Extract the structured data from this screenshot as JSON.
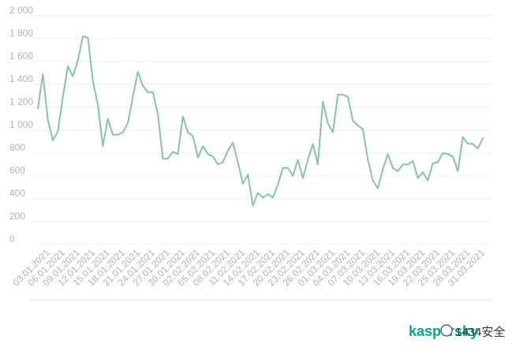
{
  "chart_data": {
    "type": "line",
    "title": "",
    "xlabel": "",
    "ylabel": "",
    "ylim": [
      0,
      2000
    ],
    "yticks": [
      "0",
      "200",
      "400",
      "600",
      "800",
      "1 000",
      "1 200",
      "1 400",
      "1 600",
      "1 800",
      "2 000"
    ],
    "ytick_values": [
      0,
      200,
      400,
      600,
      800,
      1000,
      1200,
      1400,
      1600,
      1800,
      2000
    ],
    "grid": true,
    "legend": "none",
    "x": [
      "01.01.2021",
      "02.01.2021",
      "03.01.2021",
      "04.01.2021",
      "05.01.2021",
      "06.01.2021",
      "07.01.2021",
      "08.01.2021",
      "09.01.2021",
      "10.01.2021",
      "11.01.2021",
      "12.01.2021",
      "13.01.2021",
      "14.01.2021",
      "15.01.2021",
      "16.01.2021",
      "17.01.2021",
      "18.01.2021",
      "19.01.2021",
      "20.01.2021",
      "21.01.2021",
      "22.01.2021",
      "23.01.2021",
      "24.01.2021",
      "25.01.2021",
      "26.01.2021",
      "27.01.2021",
      "28.01.2021",
      "29.01.2021",
      "30.01.2021",
      "31.01.2021",
      "01.02.2021",
      "02.02.2021",
      "03.02.2021",
      "04.02.2021",
      "05.02.2021",
      "06.02.2021",
      "07.02.2021",
      "08.02.2021",
      "09.02.2021",
      "10.02.2021",
      "11.02.2021",
      "12.02.2021",
      "13.02.2021",
      "14.02.2021",
      "15.02.2021",
      "16.02.2021",
      "17.02.2021",
      "18.02.2021",
      "19.02.2021",
      "20.02.2021",
      "21.02.2021",
      "22.02.2021",
      "23.02.2021",
      "24.02.2021",
      "25.02.2021",
      "26.02.2021",
      "27.02.2021",
      "28.02.2021",
      "01.03.2021",
      "02.03.2021",
      "03.03.2021",
      "04.03.2021",
      "05.03.2021",
      "06.03.2021",
      "07.03.2021",
      "08.03.2021",
      "09.03.2021",
      "10.03.2021",
      "11.03.2021",
      "12.03.2021",
      "13.03.2021",
      "14.03.2021",
      "15.03.2021",
      "16.03.2021",
      "17.03.2021",
      "18.03.2021",
      "19.03.2021",
      "20.03.2021",
      "21.03.2021",
      "22.03.2021",
      "23.03.2021",
      "24.03.2021",
      "25.03.2021",
      "26.03.2021",
      "27.03.2021",
      "28.03.2021",
      "29.03.2021",
      "30.03.2021",
      "31.03.2021"
    ],
    "xtick_labels": [
      "03.01.2021",
      "06.01.2021",
      "09.01.2021",
      "12.01.2021",
      "15.01.2021",
      "18.01.2021",
      "21.01.2021",
      "24.01.2021",
      "27.01.2021",
      "30.01.2021",
      "02.02.2021",
      "05.02.2021",
      "08.02.2021",
      "11.02.2021",
      "14.02.2021",
      "17.02.2021",
      "20.02.2021",
      "23.02.2021",
      "26.02.2021",
      "01.03.2021",
      "04.03.2021",
      "07.03.2021",
      "10.03.2021",
      "13.03.2021",
      "16.03.2021",
      "19.03.2021",
      "22.03.2021",
      "25.03.2021",
      "28.03.2021",
      "31.03.2021"
    ],
    "series": [
      {
        "color": "#87c5a0",
        "values": [
          1190,
          1490,
          1090,
          910,
          990,
          1290,
          1560,
          1470,
          1610,
          1820,
          1810,
          1430,
          1220,
          860,
          1100,
          960,
          960,
          980,
          1060,
          1290,
          1510,
          1390,
          1330,
          1330,
          1140,
          750,
          750,
          810,
          790,
          1120,
          980,
          950,
          760,
          860,
          790,
          770,
          700,
          720,
          820,
          890,
          720,
          530,
          610,
          340,
          450,
          410,
          440,
          410,
          520,
          670,
          670,
          600,
          740,
          580,
          740,
          880,
          700,
          1250,
          1060,
          980,
          1310,
          1310,
          1290,
          1080,
          1040,
          1010,
          740,
          560,
          490,
          660,
          790,
          670,
          640,
          700,
          700,
          730,
          580,
          630,
          560,
          710,
          720,
          800,
          790,
          770,
          640,
          940,
          880,
          880,
          840,
          930
        ]
      }
    ]
  },
  "watermark": {
    "brand": "kaspersky",
    "text": "1434安全",
    "brand_color": "#00a88e"
  }
}
